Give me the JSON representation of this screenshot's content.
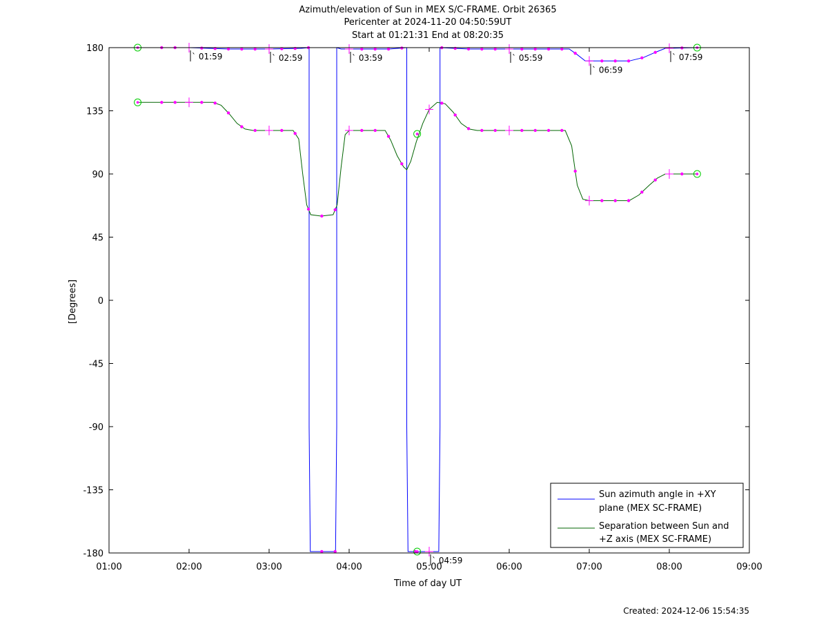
{
  "chart_data": {
    "type": "line",
    "title_lines": [
      "Azimuth/elevation of Sun in MEX S/C-FRAME.  Orbit 26365",
      "Pericenter at 2024-11-20 04:50:59UT",
      "Start at 01:21:31 End at 08:20:35"
    ],
    "xlabel": "Time of day UT",
    "ylabel": "[Degrees]",
    "footer": "Created: 2024-12-06 15:54:35",
    "xlim": [
      1.0,
      9.0
    ],
    "ylim": [
      -180,
      180
    ],
    "x_ticks": [
      {
        "v": 1,
        "label": "01:00"
      },
      {
        "v": 2,
        "label": "02:00"
      },
      {
        "v": 3,
        "label": "03:00"
      },
      {
        "v": 4,
        "label": "04:00"
      },
      {
        "v": 5,
        "label": "05:00"
      },
      {
        "v": 6,
        "label": "06:00"
      },
      {
        "v": 7,
        "label": "07:00"
      },
      {
        "v": 8,
        "label": "08:00"
      },
      {
        "v": 9,
        "label": "09:00"
      }
    ],
    "y_ticks": [
      {
        "v": 180,
        "label": "180"
      },
      {
        "v": 135,
        "label": "135"
      },
      {
        "v": 90,
        "label": "90"
      },
      {
        "v": 45,
        "label": "45"
      },
      {
        "v": 0,
        "label": "0"
      },
      {
        "v": -45,
        "label": "-45"
      },
      {
        "v": -90,
        "label": "-90"
      },
      {
        "v": -135,
        "label": "-135"
      },
      {
        "v": -180,
        "label": "-180"
      }
    ],
    "legend_position": "bottom-right",
    "series": [
      {
        "name": "Sun azimuth angle in +XY plane (MEX SC-FRAME)",
        "legend_lines": [
          "Sun azimuth angle in +XY",
          "plane (MEX SC-FRAME)"
        ],
        "color": "#0000ff",
        "points": [
          [
            1.358,
            180
          ],
          [
            2.0,
            180
          ],
          [
            2.5,
            179
          ],
          [
            3.0,
            179
          ],
          [
            3.4,
            179.5
          ],
          [
            3.5,
            180
          ],
          [
            3.5,
            -90
          ],
          [
            3.515,
            -179
          ],
          [
            3.83,
            -179
          ],
          [
            3.845,
            -90
          ],
          [
            3.845,
            180
          ],
          [
            3.9,
            179
          ],
          [
            4.5,
            179
          ],
          [
            4.72,
            180
          ],
          [
            4.72,
            -90
          ],
          [
            4.735,
            -179
          ],
          [
            5.12,
            -179
          ],
          [
            5.135,
            -90
          ],
          [
            5.135,
            180
          ],
          [
            5.5,
            179
          ],
          [
            6.0,
            179
          ],
          [
            6.5,
            179
          ],
          [
            6.75,
            179
          ],
          [
            6.85,
            175
          ],
          [
            6.95,
            170.5
          ],
          [
            7.3,
            170.5
          ],
          [
            7.5,
            170.5
          ],
          [
            7.68,
            173
          ],
          [
            7.84,
            177
          ],
          [
            7.95,
            179.5
          ],
          [
            8.35,
            180
          ]
        ],
        "marker_x": [
          1.658,
          1.825,
          2.158,
          2.325,
          2.492,
          2.658,
          2.825,
          3.158,
          3.325,
          3.492,
          3.658,
          3.825,
          4.158,
          4.325,
          4.492,
          4.658,
          4.825,
          5.158,
          5.325,
          5.492,
          5.658,
          5.825,
          6.158,
          6.325,
          6.492,
          6.658,
          6.825,
          7.158,
          7.325,
          7.492,
          7.658,
          7.825,
          8.158
        ],
        "tick_x": [
          2.0,
          3.0,
          4.0,
          5.0,
          6.0,
          7.0,
          8.0
        ],
        "tick_labels": [
          {
            "x": 2.0,
            "label": "01:59"
          },
          {
            "x": 3.0,
            "label": "02:59"
          },
          {
            "x": 4.0,
            "label": "03:59"
          },
          {
            "x": 5.0,
            "label": "04:59"
          },
          {
            "x": 6.0,
            "label": "05:59"
          },
          {
            "x": 7.0,
            "label": "06:59"
          },
          {
            "x": 8.0,
            "label": "07:59"
          }
        ]
      },
      {
        "name": "Separation between Sun and +Z axis (MEX SC-FRAME)",
        "legend_lines": [
          "Separation between Sun and",
          "+Z axis (MEX SC-FRAME)"
        ],
        "color": "#006400",
        "points": [
          [
            1.358,
            141
          ],
          [
            2.0,
            141
          ],
          [
            2.3,
            141
          ],
          [
            2.4,
            139
          ],
          [
            2.5,
            133
          ],
          [
            2.6,
            126
          ],
          [
            2.7,
            122
          ],
          [
            2.8,
            121
          ],
          [
            3.0,
            121
          ],
          [
            3.3,
            121
          ],
          [
            3.37,
            115
          ],
          [
            3.42,
            90
          ],
          [
            3.47,
            68
          ],
          [
            3.52,
            61
          ],
          [
            3.65,
            60
          ],
          [
            3.8,
            61
          ],
          [
            3.85,
            68
          ],
          [
            3.9,
            95
          ],
          [
            3.95,
            118
          ],
          [
            4.0,
            121
          ],
          [
            4.3,
            121
          ],
          [
            4.45,
            121
          ],
          [
            4.52,
            114
          ],
          [
            4.6,
            103
          ],
          [
            4.68,
            95
          ],
          [
            4.72,
            93
          ],
          [
            4.77,
            99
          ],
          [
            4.84,
            113
          ],
          [
            4.92,
            126
          ],
          [
            5.0,
            136
          ],
          [
            5.1,
            141
          ],
          [
            5.2,
            140
          ],
          [
            5.3,
            134
          ],
          [
            5.4,
            126
          ],
          [
            5.5,
            122
          ],
          [
            5.6,
            121
          ],
          [
            6.0,
            121
          ],
          [
            6.5,
            121
          ],
          [
            6.7,
            121
          ],
          [
            6.78,
            110
          ],
          [
            6.85,
            82
          ],
          [
            6.92,
            72
          ],
          [
            7.0,
            71
          ],
          [
            7.3,
            71
          ],
          [
            7.5,
            71
          ],
          [
            7.62,
            75
          ],
          [
            7.75,
            82
          ],
          [
            7.85,
            87
          ],
          [
            7.95,
            90
          ],
          [
            8.35,
            90
          ]
        ],
        "marker_x": [
          1.658,
          1.825,
          2.158,
          2.325,
          2.492,
          2.658,
          2.825,
          3.158,
          3.325,
          3.492,
          3.658,
          3.825,
          4.158,
          4.325,
          4.492,
          4.658,
          5.158,
          5.325,
          5.492,
          5.658,
          5.825,
          6.158,
          6.325,
          6.492,
          6.658,
          6.825,
          7.158,
          7.325,
          7.492,
          7.658,
          7.825,
          8.158
        ],
        "tick_x": [
          2.0,
          3.0,
          4.0,
          5.0,
          6.0,
          7.0,
          8.0
        ]
      }
    ],
    "circle_markers": [
      {
        "x": 1.358,
        "y": 180
      },
      {
        "x": 8.348,
        "y": 180
      },
      {
        "x": 1.358,
        "y": 141
      },
      {
        "x": 8.348,
        "y": 90
      },
      {
        "x": 4.85,
        "y": 118.5
      },
      {
        "x": 4.85,
        "y": -179
      }
    ]
  }
}
